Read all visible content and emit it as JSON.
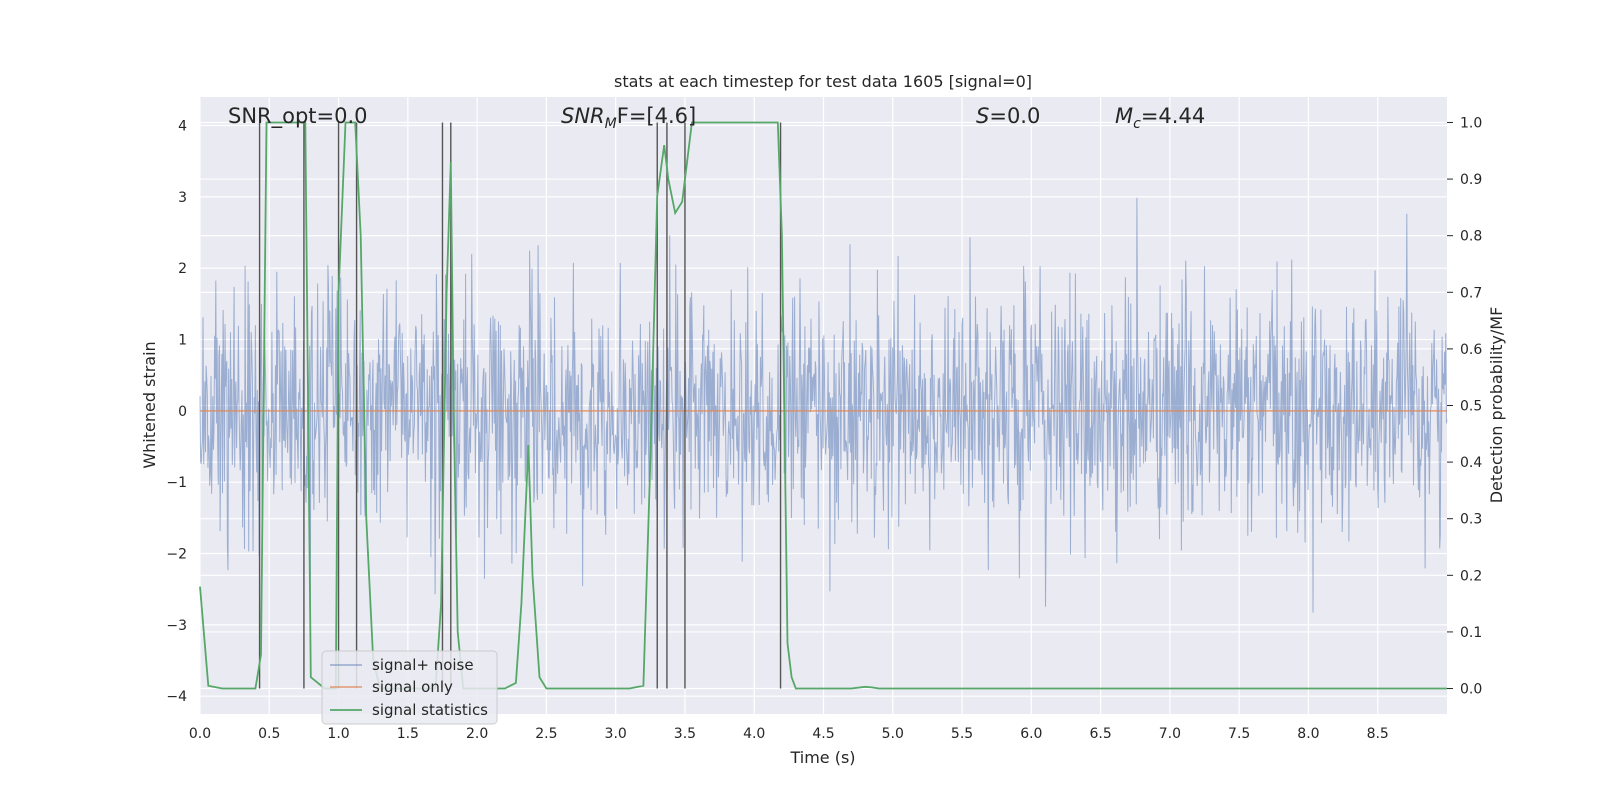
{
  "chart_data": {
    "type": "line",
    "title": "stats at each timestep for test data 1605 [signal=0]",
    "xlabel": "Time (s)",
    "ylabel_left": "Whitened strain",
    "ylabel_right": "Detection probability/MF",
    "xlim": [
      0.0,
      9.0
    ],
    "ylim_left": [
      -4.25,
      4.4
    ],
    "ylim_right": [
      -0.045,
      1.045
    ],
    "x_ticks": [
      "0.0",
      "0.5",
      "1.0",
      "1.5",
      "2.0",
      "2.5",
      "3.0",
      "3.5",
      "4.0",
      "4.5",
      "5.0",
      "5.5",
      "6.0",
      "6.5",
      "7.0",
      "7.5",
      "8.0",
      "8.5"
    ],
    "y_ticks_left": [
      "−4",
      "−3",
      "−2",
      "−1",
      "0",
      "1",
      "2",
      "3",
      "4"
    ],
    "y_ticks_right": [
      "0.0",
      "0.1",
      "0.2",
      "0.3",
      "0.4",
      "0.5",
      "0.6",
      "0.7",
      "0.8",
      "0.9",
      "1.0"
    ],
    "grid": true,
    "legend_position": "lower-left",
    "annotations": [
      {
        "text": "SNR_opt=0.0"
      },
      {
        "text": "SNR",
        "sub": "M",
        "tail": "F=[4.6]"
      },
      {
        "text": "S",
        "tail": "=0.0"
      },
      {
        "text": "M",
        "sub": "c",
        "tail": "=4.44"
      }
    ],
    "series": [
      {
        "name": "signal+ noise",
        "color": "#4c72b0",
        "description_kind": "noise",
        "sigma": 0.85,
        "n_points": 2048
      },
      {
        "name": "signal only",
        "color": "#dd8452",
        "x": [
          0.0,
          9.0
        ],
        "y": [
          0.0,
          0.0
        ]
      },
      {
        "name": "signal statistics",
        "color": "#55a868",
        "axis": "right",
        "x": [
          0.0,
          0.06,
          0.16,
          0.24,
          0.32,
          0.4,
          0.44,
          0.48,
          0.5,
          0.55,
          0.6,
          0.65,
          0.7,
          0.73,
          0.76,
          0.8,
          0.9,
          0.98,
          1.0,
          1.05,
          1.08,
          1.12,
          1.16,
          1.2,
          1.25,
          1.3,
          1.4,
          1.5,
          1.6,
          1.7,
          1.74,
          1.78,
          1.81,
          1.83,
          1.86,
          1.9,
          2.0,
          2.1,
          2.2,
          2.28,
          2.32,
          2.37,
          2.4,
          2.45,
          2.5,
          2.6,
          2.8,
          3.0,
          3.1,
          3.2,
          3.25,
          3.3,
          3.35,
          3.38,
          3.43,
          3.48,
          3.55,
          3.6,
          3.7,
          3.8,
          3.9,
          4.0,
          4.1,
          4.17,
          4.2,
          4.24,
          4.27,
          4.3,
          4.4,
          4.6,
          4.7,
          4.8,
          4.85,
          4.9,
          5.0,
          5.5,
          6.0,
          7.0,
          8.0,
          9.0
        ],
        "y": [
          0.18,
          0.005,
          0.0,
          0.0,
          0.0,
          0.0,
          0.06,
          1.0,
          1.0,
          1.0,
          1.0,
          1.0,
          1.0,
          1.0,
          1.0,
          0.02,
          0.0,
          0.0,
          0.7,
          1.0,
          1.0,
          1.0,
          0.8,
          0.3,
          0.05,
          0.0,
          0.0,
          0.0,
          0.0,
          0.0,
          0.15,
          0.7,
          0.93,
          0.5,
          0.1,
          0.0,
          0.0,
          0.0,
          0.0,
          0.01,
          0.15,
          0.43,
          0.2,
          0.02,
          0.0,
          0.0,
          0.0,
          0.0,
          0.0,
          0.005,
          0.4,
          0.87,
          0.96,
          0.9,
          0.84,
          0.86,
          1.0,
          1.0,
          1.0,
          1.0,
          1.0,
          1.0,
          1.0,
          1.0,
          0.8,
          0.08,
          0.02,
          0.0,
          0.0,
          0.0,
          0.0,
          0.003,
          0.002,
          0.0,
          0.0,
          0.0,
          0.0,
          0.0,
          0.0,
          0.0
        ]
      }
    ],
    "vertical_lines_x": [
      0.43,
      0.75,
      1.0,
      1.13,
      1.75,
      1.81,
      3.3,
      3.37,
      3.5,
      4.19
    ]
  }
}
